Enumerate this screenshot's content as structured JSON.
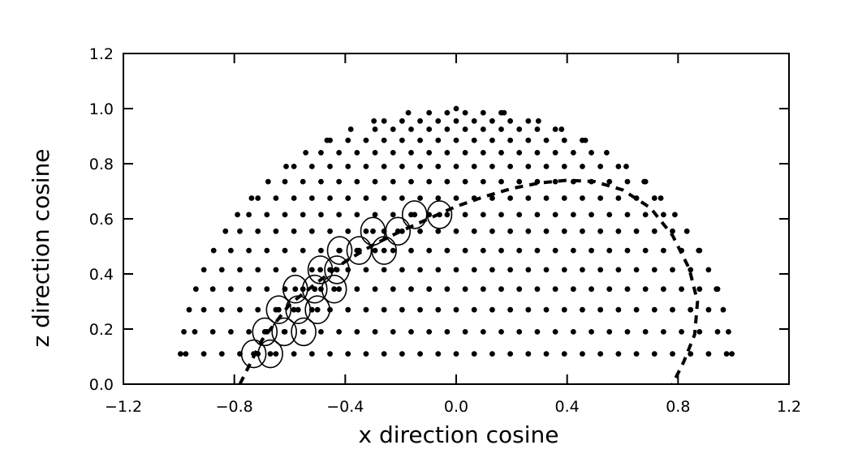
{
  "chart_data": {
    "type": "scatter",
    "title": "",
    "xlabel": "x direction cosine",
    "ylabel": "z direction cosine",
    "xlim": [
      -1.2,
      1.2
    ],
    "ylim": [
      0.0,
      1.2
    ],
    "grid": false,
    "x_ticks": [
      -1.2,
      -0.8,
      -0.4,
      0.0,
      0.4,
      0.8,
      1.2
    ],
    "x_tick_labels": [
      "−1.2",
      "−0.8",
      "−0.4",
      "0.0",
      "0.4",
      "0.8",
      "1.2"
    ],
    "y_ticks": [
      0.0,
      0.2,
      0.4,
      0.6,
      0.8,
      1.0,
      1.2
    ],
    "y_tick_labels": [
      "0.0",
      "0.2",
      "0.4",
      "0.6",
      "0.8",
      "1.0",
      "1.2"
    ],
    "series": [
      {
        "style": "dots",
        "description_rows": "sample direction-cosine grid: rows at z = 0.11, 0.19, 0.27, 0.345, 0.415, 0.485, 0.555, 0.615, 0.675, 0.735, 0.79, 0.84, 0.885, 0.925, 0.955, 0.985, 1.0",
        "z_rows": [
          0.11,
          0.19,
          0.27,
          0.345,
          0.415,
          0.485,
          0.555,
          0.615,
          0.675,
          0.735,
          0.79,
          0.84,
          0.885,
          0.925,
          0.955,
          0.985,
          1.0
        ],
        "x_spacing": 0.065
      },
      {
        "style": "circles",
        "points": [
          {
            "x": -0.73,
            "y": 0.11
          },
          {
            "x": -0.67,
            "y": 0.11
          },
          {
            "x": -0.69,
            "y": 0.19
          },
          {
            "x": -0.62,
            "y": 0.19
          },
          {
            "x": -0.55,
            "y": 0.19
          },
          {
            "x": -0.64,
            "y": 0.27
          },
          {
            "x": -0.57,
            "y": 0.27
          },
          {
            "x": -0.5,
            "y": 0.27
          },
          {
            "x": -0.58,
            "y": 0.345
          },
          {
            "x": -0.51,
            "y": 0.345
          },
          {
            "x": -0.44,
            "y": 0.345
          },
          {
            "x": -0.49,
            "y": 0.415
          },
          {
            "x": -0.43,
            "y": 0.415
          },
          {
            "x": -0.42,
            "y": 0.485
          },
          {
            "x": -0.35,
            "y": 0.485
          },
          {
            "x": -0.26,
            "y": 0.485
          },
          {
            "x": -0.3,
            "y": 0.555
          },
          {
            "x": -0.21,
            "y": 0.555
          },
          {
            "x": -0.15,
            "y": 0.615
          },
          {
            "x": -0.06,
            "y": 0.615
          }
        ]
      },
      {
        "style": "dashed",
        "points": [
          {
            "x": -0.78,
            "y": 0.0
          },
          {
            "x": -0.7,
            "y": 0.16
          },
          {
            "x": -0.6,
            "y": 0.29
          },
          {
            "x": -0.5,
            "y": 0.37
          },
          {
            "x": -0.4,
            "y": 0.445
          },
          {
            "x": -0.3,
            "y": 0.505
          },
          {
            "x": -0.2,
            "y": 0.555
          },
          {
            "x": -0.1,
            "y": 0.6
          },
          {
            "x": 0.0,
            "y": 0.645
          },
          {
            "x": 0.1,
            "y": 0.68
          },
          {
            "x": 0.2,
            "y": 0.71
          },
          {
            "x": 0.3,
            "y": 0.73
          },
          {
            "x": 0.4,
            "y": 0.74
          },
          {
            "x": 0.5,
            "y": 0.735
          },
          {
            "x": 0.6,
            "y": 0.705
          },
          {
            "x": 0.7,
            "y": 0.64
          },
          {
            "x": 0.78,
            "y": 0.54
          },
          {
            "x": 0.84,
            "y": 0.42
          },
          {
            "x": 0.87,
            "y": 0.3
          },
          {
            "x": 0.86,
            "y": 0.18
          },
          {
            "x": 0.82,
            "y": 0.08
          },
          {
            "x": 0.78,
            "y": 0.0
          }
        ]
      }
    ]
  }
}
